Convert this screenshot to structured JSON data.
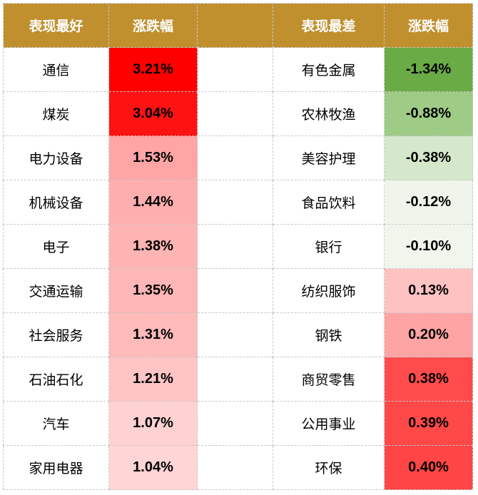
{
  "chart_data": {
    "type": "table",
    "headers": {
      "best_title": "表现最好",
      "best_change": "涨跌幅",
      "worst_title": "表现最差",
      "worst_change": "涨跌幅"
    },
    "best": [
      {
        "name": "通信",
        "value": "3.21%",
        "color": "#ff0000"
      },
      {
        "name": "煤炭",
        "value": "3.04%",
        "color": "#ff1212"
      },
      {
        "name": "电力设备",
        "value": "1.53%",
        "color": "#ffa5a5"
      },
      {
        "name": "机械设备",
        "value": "1.44%",
        "color": "#ffaeae"
      },
      {
        "name": "电子",
        "value": "1.38%",
        "color": "#ffb4b4"
      },
      {
        "name": "交通运输",
        "value": "1.35%",
        "color": "#ffb6b6"
      },
      {
        "name": "社会服务",
        "value": "1.31%",
        "color": "#ffbaba"
      },
      {
        "name": "石油石化",
        "value": "1.21%",
        "color": "#ffc4c4"
      },
      {
        "name": "汽车",
        "value": "1.07%",
        "color": "#ffd2d2"
      },
      {
        "name": "家用电器",
        "value": "1.04%",
        "color": "#ffd5d5"
      }
    ],
    "worst": [
      {
        "name": "有色金属",
        "value": "-1.34%",
        "color": "#6aab45"
      },
      {
        "name": "农林牧渔",
        "value": "-0.88%",
        "color": "#9ecb85"
      },
      {
        "name": "美容护理",
        "value": "-0.38%",
        "color": "#d5e8cb"
      },
      {
        "name": "食品饮料",
        "value": "-0.12%",
        "color": "#eff5ea"
      },
      {
        "name": "银行",
        "value": "-0.10%",
        "color": "#f1f6ed"
      },
      {
        "name": "纺织服饰",
        "value": "0.13%",
        "color": "#ffc2c2"
      },
      {
        "name": "钢铁",
        "value": "0.20%",
        "color": "#ffa4a4"
      },
      {
        "name": "商贸零售",
        "value": "0.38%",
        "color": "#ff4b4b"
      },
      {
        "name": "公用事业",
        "value": "0.39%",
        "color": "#ff4848"
      },
      {
        "name": "环保",
        "value": "0.40%",
        "color": "#ff4545"
      }
    ]
  }
}
